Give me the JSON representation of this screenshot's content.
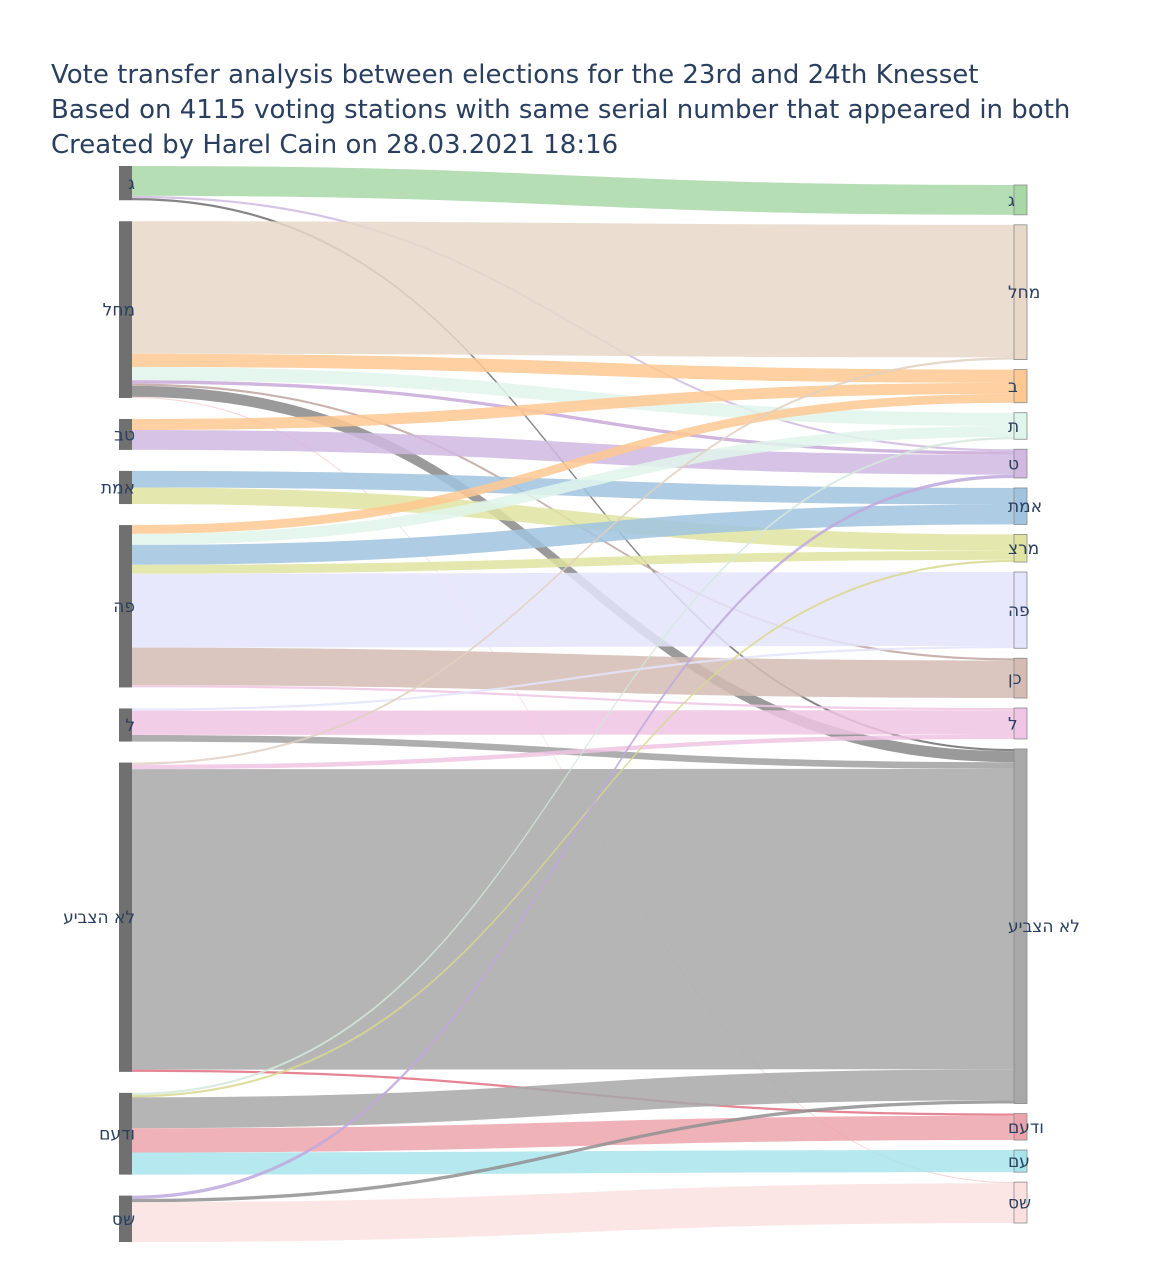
{
  "title": {
    "line1": "Vote transfer analysis between elections for the 23rd and 24th Knesset",
    "line2": "Based on 4115 voting stations with same serial number that appeared in both",
    "line3": "Created by Harel Cain on 28.03.2021 18:16"
  },
  "chart_data": {
    "type": "sankey",
    "source_nodes": [
      {
        "id": "g",
        "label": "ג",
        "color": "#707070"
      },
      {
        "id": "machal",
        "label": "מחל",
        "color": "#707070"
      },
      {
        "id": "tav",
        "label": "טב",
        "color": "#707070"
      },
      {
        "id": "emet",
        "label": "אמת",
        "color": "#707070"
      },
      {
        "id": "pe",
        "label": "פה",
        "color": "#707070"
      },
      {
        "id": "l",
        "label": "ל",
        "color": "#707070"
      },
      {
        "id": "nv",
        "label": "לא הצביע",
        "color": "#707070"
      },
      {
        "id": "vdaam",
        "label": "ודעם",
        "color": "#707070"
      },
      {
        "id": "shas",
        "label": "שס",
        "color": "#707070"
      }
    ],
    "target_nodes": [
      {
        "id": "g",
        "label": "ג",
        "color": "#a8d8a8"
      },
      {
        "id": "machal",
        "label": "מחל",
        "color": "#e8d8c8"
      },
      {
        "id": "b",
        "label": "ב",
        "color": "#ffc890"
      },
      {
        "id": "t",
        "label": "ת",
        "color": "#e0f5ec"
      },
      {
        "id": "tet",
        "label": "ט",
        "color": "#d0b8e0"
      },
      {
        "id": "emet",
        "label": "אמת",
        "color": "#a0c4e0"
      },
      {
        "id": "meretz",
        "label": "מרצ",
        "color": "#e0e4a0"
      },
      {
        "id": "pe",
        "label": "פה",
        "color": "#e4e4fc"
      },
      {
        "id": "kan",
        "label": "כן",
        "color": "#d4bcb4"
      },
      {
        "id": "l",
        "label": "ל",
        "color": "#f0c4e4"
      },
      {
        "id": "nv",
        "label": "לא הצביע",
        "color": "#a8a8a8"
      },
      {
        "id": "vdaam",
        "label": "ודעם",
        "color": "#eca4ac"
      },
      {
        "id": "am",
        "label": "עם",
        "color": "#a8e4ec"
      },
      {
        "id": "shas",
        "label": "שס",
        "color": "#fce0e0"
      }
    ],
    "links": [
      {
        "source": "g",
        "target": "g",
        "value": 27,
        "color": "#a8d8a8"
      },
      {
        "source": "g",
        "target": "tet",
        "value": 2,
        "color": "#d0b8e0"
      },
      {
        "source": "g",
        "target": "nv",
        "value": 2,
        "color": "#707070"
      },
      {
        "source": "machal",
        "target": "machal",
        "value": 120,
        "color": "#e8d8c8"
      },
      {
        "source": "machal",
        "target": "b",
        "value": 12,
        "color": "#ffc890"
      },
      {
        "source": "machal",
        "target": "t",
        "value": 12,
        "color": "#e0f5ec"
      },
      {
        "source": "machal",
        "target": "tet",
        "value": 3,
        "color": "#c8a8d8"
      },
      {
        "source": "machal",
        "target": "nv",
        "value": 10,
        "color": "#888888"
      },
      {
        "source": "machal",
        "target": "kan",
        "value": 2,
        "color": "#c0a4a0"
      },
      {
        "source": "machal",
        "target": "shas",
        "value": 1,
        "color": "#f8d0d0"
      },
      {
        "source": "tav",
        "target": "b",
        "value": 10,
        "color": "#ffc890"
      },
      {
        "source": "tav",
        "target": "tet",
        "value": 18,
        "color": "#d0b8e0"
      },
      {
        "source": "emet",
        "target": "emet",
        "value": 15,
        "color": "#a0c4e0"
      },
      {
        "source": "emet",
        "target": "meretz",
        "value": 15,
        "color": "#e0e4a0"
      },
      {
        "source": "pe",
        "target": "b",
        "value": 8,
        "color": "#ffc890"
      },
      {
        "source": "pe",
        "target": "t",
        "value": 10,
        "color": "#e0f5ec"
      },
      {
        "source": "pe",
        "target": "emet",
        "value": 18,
        "color": "#a0c4e0"
      },
      {
        "source": "pe",
        "target": "meretz",
        "value": 8,
        "color": "#e0e4a0"
      },
      {
        "source": "pe",
        "target": "pe",
        "value": 67,
        "color": "#e4e4fc"
      },
      {
        "source": "pe",
        "target": "kan",
        "value": 34,
        "color": "#d4bcb4"
      },
      {
        "source": "pe",
        "target": "l",
        "value": 2,
        "color": "#f0c4e4"
      },
      {
        "source": "l",
        "target": "pe",
        "value": 2,
        "color": "#e4e4fc"
      },
      {
        "source": "l",
        "target": "l",
        "value": 22,
        "color": "#f0c4e4"
      },
      {
        "source": "l",
        "target": "nv",
        "value": 6,
        "color": "#a0a0a0"
      },
      {
        "source": "nv",
        "target": "machal",
        "value": 2,
        "color": "#e0d0c0"
      },
      {
        "source": "nv",
        "target": "l",
        "value": 4,
        "color": "#f0c4e4"
      },
      {
        "source": "nv",
        "target": "nv",
        "value": 272,
        "color": "#a8a8a8"
      },
      {
        "source": "nv",
        "target": "vdaam",
        "value": 2,
        "color": "#e07080"
      },
      {
        "source": "vdaam",
        "target": "meretz",
        "value": 2,
        "color": "#d8d890"
      },
      {
        "source": "vdaam",
        "target": "t",
        "value": 2,
        "color": "#d4e8dc"
      },
      {
        "source": "vdaam",
        "target": "nv",
        "value": 28,
        "color": "#a8a8a8"
      },
      {
        "source": "vdaam",
        "target": "vdaam",
        "value": 22,
        "color": "#eca4ac"
      },
      {
        "source": "vdaam",
        "target": "am",
        "value": 20,
        "color": "#a8e4ec"
      },
      {
        "source": "shas",
        "target": "tet",
        "value": 3,
        "color": "#c0a8dc"
      },
      {
        "source": "shas",
        "target": "nv",
        "value": 3,
        "color": "#909090"
      },
      {
        "source": "shas",
        "target": "shas",
        "value": 36,
        "color": "#fce0e0"
      }
    ]
  }
}
